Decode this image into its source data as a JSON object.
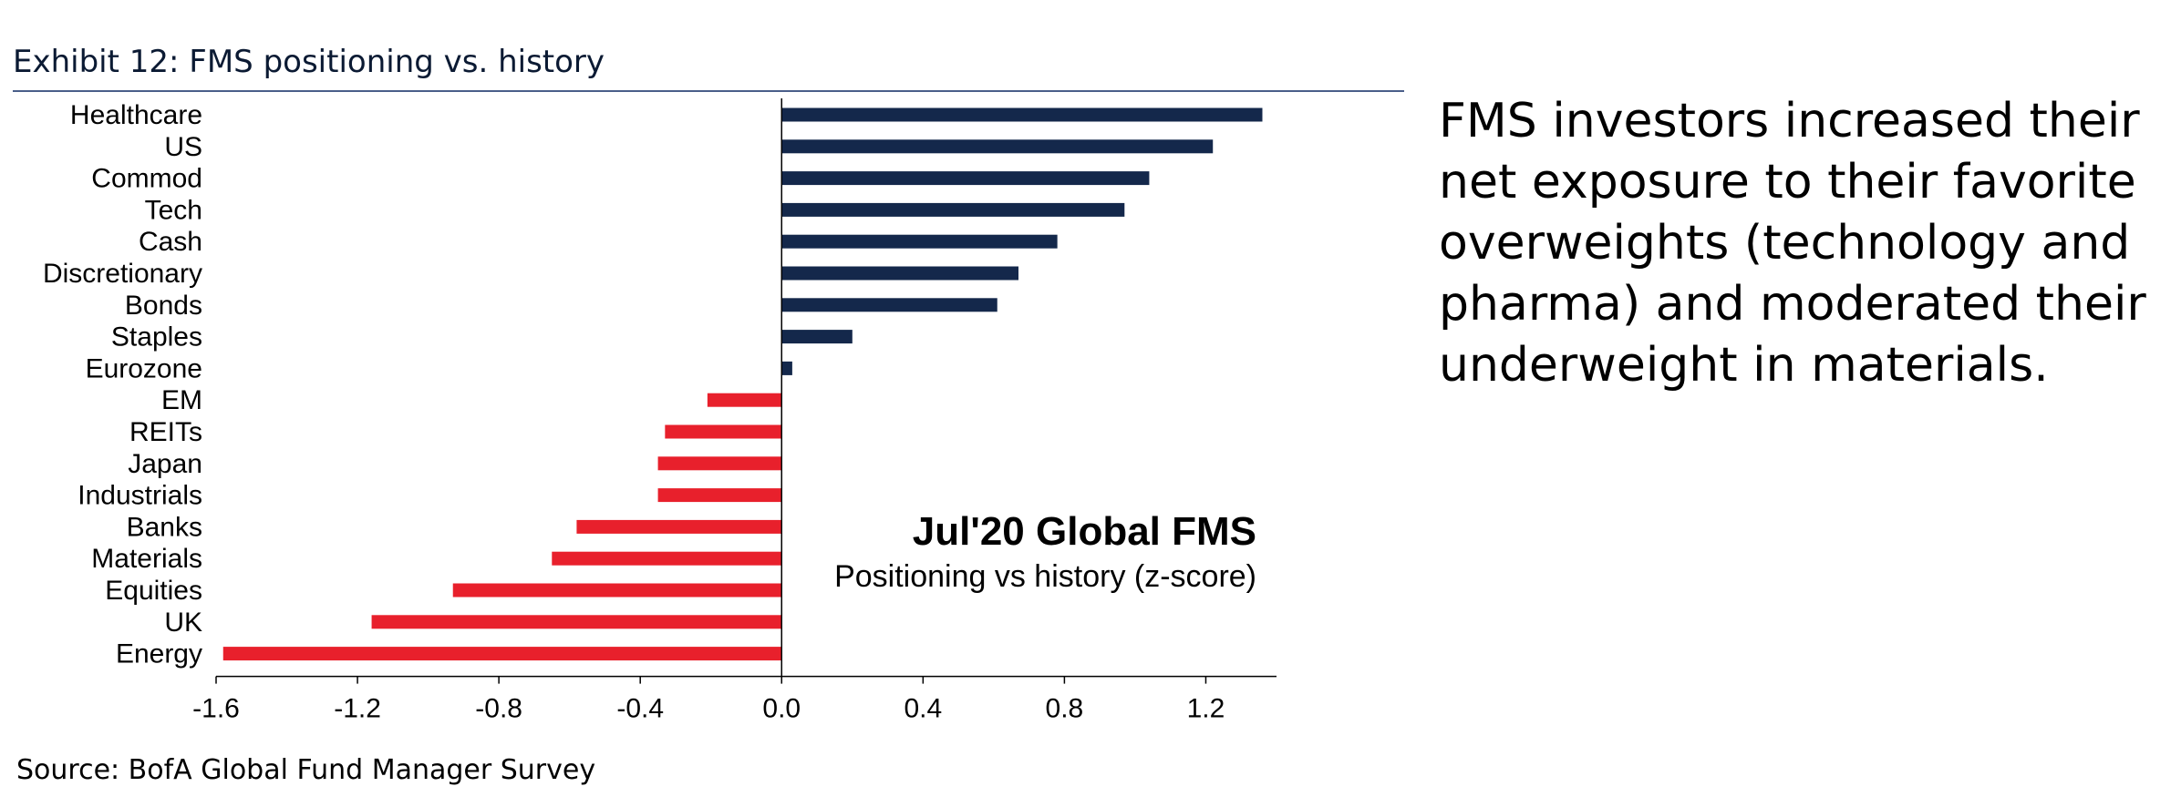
{
  "header": {
    "title": "Exhibit 12: FMS positioning vs. history"
  },
  "commentary": "FMS investors increased their net exposure to their favorite overweights (technology and pharma) and moderated their underweight in materials.",
  "footer": {
    "source": "Source: BofA Global Fund Manager Survey"
  },
  "chart_data": {
    "type": "bar",
    "orientation": "horizontal",
    "categories": [
      "Healthcare",
      "US",
      "Commod",
      "Tech",
      "Cash",
      "Discretionary",
      "Bonds",
      "Staples",
      "Eurozone",
      "EM",
      "REITs",
      "Japan",
      "Industrials",
      "Banks",
      "Materials",
      "Equities",
      "UK",
      "Energy"
    ],
    "values": [
      1.36,
      1.22,
      1.04,
      0.97,
      0.78,
      0.67,
      0.61,
      0.2,
      0.03,
      -0.21,
      -0.33,
      -0.35,
      -0.35,
      -0.58,
      -0.65,
      -0.93,
      -1.16,
      -1.58
    ],
    "xlim": [
      -1.6,
      1.4
    ],
    "xticks": [
      -1.6,
      -1.2,
      -0.8,
      -0.4,
      0.0,
      0.4,
      0.8,
      1.2
    ],
    "xtick_labels": [
      "-1.6",
      "-1.2",
      "-0.8",
      "-0.4",
      "0.0",
      "0.4",
      "0.8",
      "1.2"
    ],
    "colors": {
      "positive": "#14284b",
      "negative": "#e8202c"
    },
    "annotation": {
      "title": "Jul'20 Global FMS",
      "subtitle": "Positioning vs history (z-score)"
    },
    "grid": false,
    "legend": "none"
  }
}
